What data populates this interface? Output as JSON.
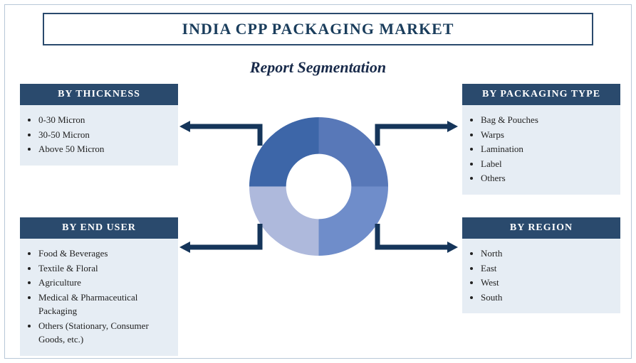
{
  "title": "INDIA CPP PACKAGING MARKET",
  "subtitle": "Report Segmentation",
  "colors": {
    "header_bg": "#2a4a6d",
    "header_text": "#ffffff",
    "body_bg": "#e6edf4",
    "border": "#b8c8d8",
    "title_color": "#1a3d5c",
    "subtitle_color": "#182a4a",
    "arrow": "#15355a"
  },
  "donut": {
    "type": "pie",
    "inner_radius": 0.47,
    "slices": [
      {
        "fraction": 0.25,
        "color": "#5878b8"
      },
      {
        "fraction": 0.25,
        "color": "#6f8dca"
      },
      {
        "fraction": 0.25,
        "color": "#aeb9dc"
      },
      {
        "fraction": 0.25,
        "color": "#3d66a8"
      }
    ],
    "hole_color": "#ffffff"
  },
  "segments": {
    "thickness": {
      "header": "BY THICKNESS",
      "items": [
        "0-30 Micron",
        "30-50 Micron",
        "Above 50 Micron"
      ]
    },
    "enduser": {
      "header": "BY END USER",
      "items": [
        "Food & Beverages",
        "Textile & Floral",
        "Agriculture",
        "Medical & Pharmaceutical Packaging",
        "Others (Stationary, Consumer Goods, etc.)"
      ]
    },
    "packtype": {
      "header": "BY PACKAGING TYPE",
      "items": [
        "Bag & Pouches",
        "Warps",
        "Lamination",
        "Label",
        "Others"
      ]
    },
    "region": {
      "header": "BY REGION",
      "items": [
        "North",
        "East",
        "West",
        "South"
      ]
    }
  }
}
